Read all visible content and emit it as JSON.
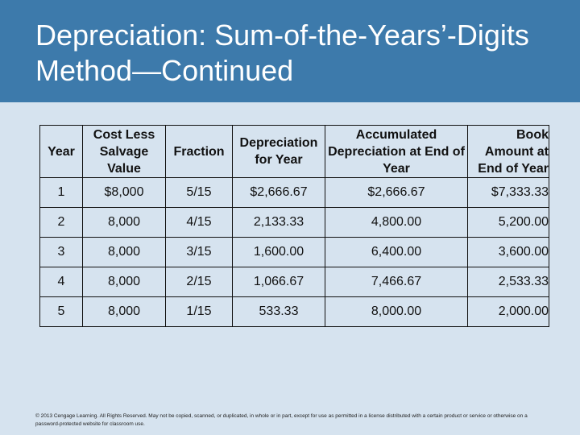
{
  "title": "Depreciation: Sum-of-the-Years’-Digits Method—Continued",
  "table": {
    "headers": {
      "year": "Year",
      "cost": "Cost Less Salvage Value",
      "fraction": "Fraction",
      "depreciation": "Depreciation for Year",
      "accumulated": "Accumulated Depreciation at End of Year",
      "book": "Book Amount at End of Year"
    },
    "rows": [
      {
        "year": "1",
        "cost": "$8,000",
        "fraction": "5/15",
        "depreciation": "$2,666.67",
        "accumulated": "$2,666.67",
        "book": "$7,333.33"
      },
      {
        "year": "2",
        "cost": "8,000",
        "fraction": "4/15",
        "depreciation": "2,133.33",
        "accumulated": "4,800.00",
        "book": "5,200.00"
      },
      {
        "year": "3",
        "cost": "8,000",
        "fraction": "3/15",
        "depreciation": "1,600.00",
        "accumulated": "6,400.00",
        "book": "3,600.00"
      },
      {
        "year": "4",
        "cost": "8,000",
        "fraction": "2/15",
        "depreciation": "1,066.67",
        "accumulated": "7,466.67",
        "book": "2,533.33"
      },
      {
        "year": "5",
        "cost": "8,000",
        "fraction": "1/15",
        "depreciation": "533.33",
        "accumulated": "8,000.00",
        "book": "2,000.00"
      }
    ]
  },
  "footer": "© 2013 Cengage Learning. All Rights Reserved. May not be copied, scanned, or duplicated, in whole or in part, except for use as permitted in a license distributed with a certain product or service or otherwise on a password-protected website for classroom use."
}
